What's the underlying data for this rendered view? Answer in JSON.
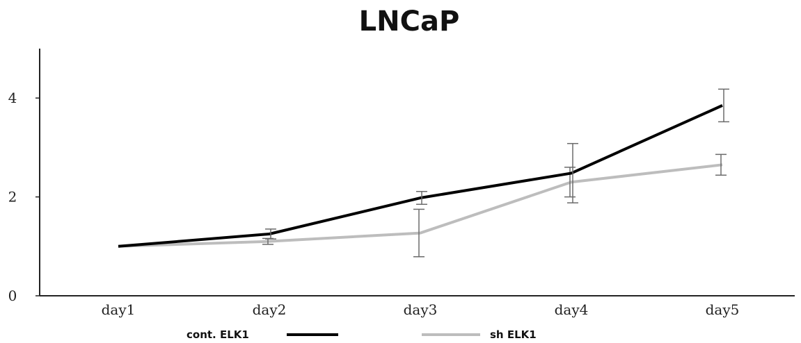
{
  "chart_data": {
    "type": "line",
    "title": "LNCaP",
    "xlabel": "",
    "ylabel": "",
    "categories": [
      "day1",
      "day2",
      "day3",
      "day4",
      "day5"
    ],
    "yticks": [
      0,
      2,
      4
    ],
    "ylim": [
      0,
      5
    ],
    "grid": false,
    "legend_position": "bottom",
    "series": [
      {
        "name": "cont. ELK1",
        "color": "#000000",
        "values": [
          1.0,
          1.25,
          1.98,
          2.48,
          3.85
        ],
        "errors": [
          0,
          0.1,
          0.13,
          0.6,
          0.33
        ]
      },
      {
        "name": "sh ELK1",
        "color": "#bdbdbd",
        "values": [
          1.0,
          1.1,
          1.27,
          2.3,
          2.65
        ],
        "errors": [
          0,
          0.06,
          0.48,
          0.3,
          0.21
        ]
      }
    ]
  }
}
